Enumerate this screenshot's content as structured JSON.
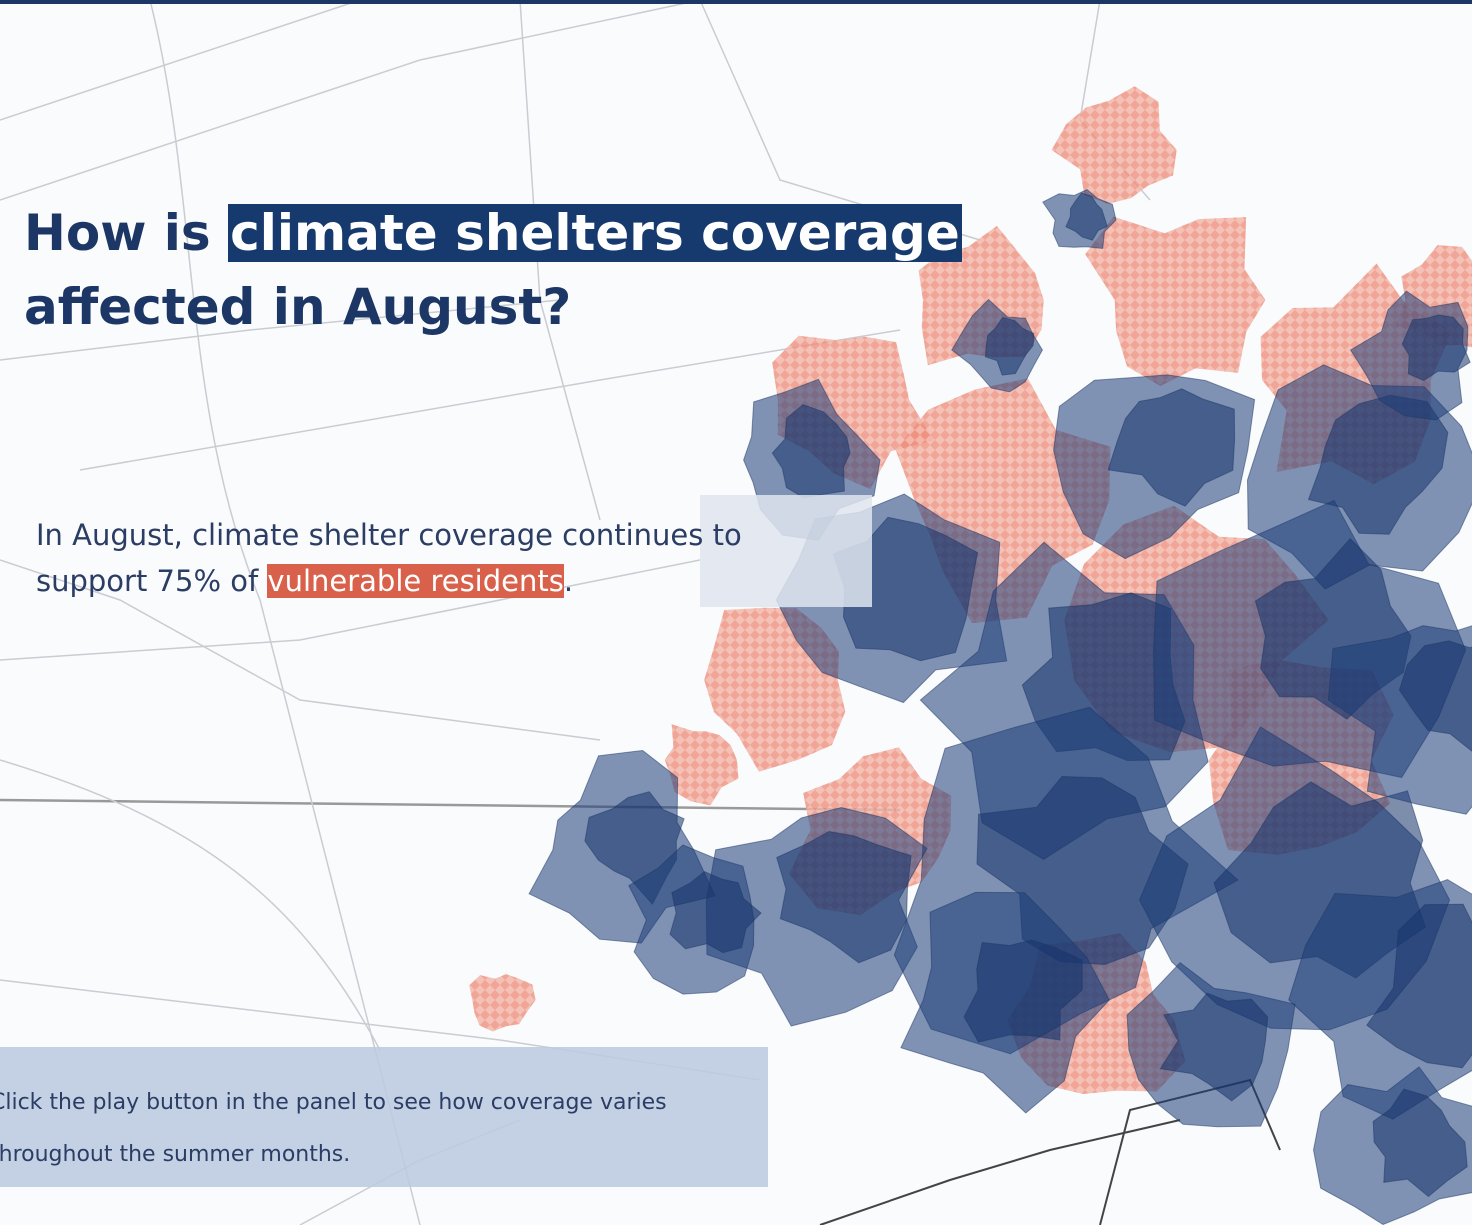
{
  "header": {
    "title_before": "How is ",
    "title_highlight": "climate shelters coverage",
    "title_after": " affected in August?"
  },
  "intro": {
    "text_before": "In August, climate shelter coverage continues to support 75% of ",
    "highlight": "vulnerable residents",
    "text_after": "."
  },
  "panel": {
    "text": "Click the play button in the panel to see how coverage varies throughout the summer months."
  }
}
